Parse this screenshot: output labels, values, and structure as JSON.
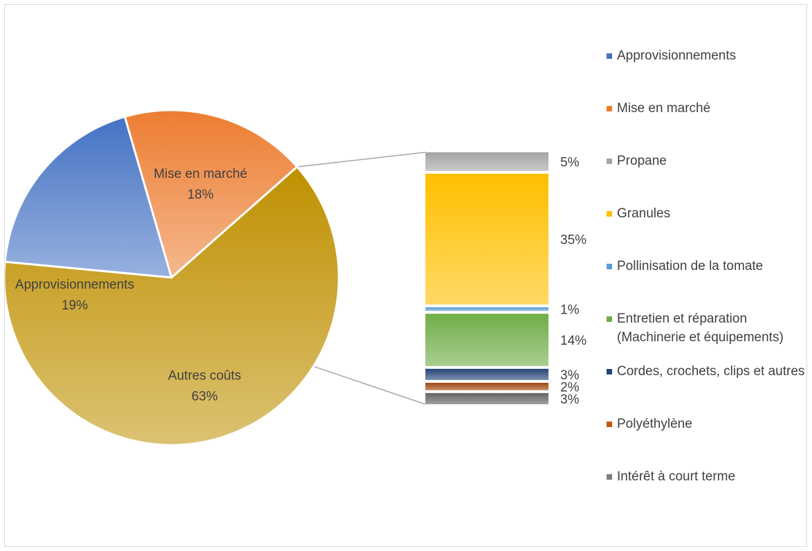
{
  "chart_data": {
    "type": "bar-of-pie",
    "pie": {
      "slices": [
        {
          "label": "Approvisionnements",
          "value": 19,
          "display": "19%",
          "color": "#4472c4"
        },
        {
          "label": "Mise en marché",
          "value": 18,
          "display": "18%",
          "color": "#ed7d31"
        },
        {
          "label": "Autres coûts",
          "value": 63,
          "display": "63%",
          "color": "#bf9000"
        }
      ]
    },
    "bar": {
      "segments": [
        {
          "label": "Propane",
          "value": 5,
          "display": "5%",
          "color": "#a5a5a5"
        },
        {
          "label": "Granules",
          "value": 35,
          "display": "35%",
          "color": "#ffc000"
        },
        {
          "label": "Pollinisation de la tomate",
          "value": 1,
          "display": "1%",
          "color": "#5b9bd5"
        },
        {
          "label": "Entretien et réparation (Machinerie et équipements)",
          "value": 14,
          "display": "14%",
          "color": "#70ad47"
        },
        {
          "label": "Cordes, crochets, clips et autres",
          "value": 3,
          "display": "3%",
          "color": "#264478"
        },
        {
          "label": "Polyéthylène",
          "value": 2,
          "display": "2%",
          "color": "#9e480e"
        },
        {
          "label": "Intérêt à court terme",
          "value": 3,
          "display": "3%",
          "color": "#636363"
        }
      ]
    },
    "legend": {
      "placement": "right",
      "entries": [
        {
          "label": "Approvisionnements",
          "color": "#4472c4"
        },
        {
          "label": "Mise en marché",
          "color": "#ed7d31"
        },
        {
          "label": "Propane",
          "color": "#a5a5a5"
        },
        {
          "label": "Granules",
          "color": "#ffc000"
        },
        {
          "label": "Pollinisation de la tomate",
          "color": "#5b9bd5"
        },
        {
          "label": "Entretien et réparation (Machinerie et équipements)",
          "color": "#70ad47"
        },
        {
          "label": "Cordes, crochets, clips et autres",
          "color": "#264478"
        },
        {
          "label": "Polyéthylène",
          "color": "#c55a11"
        },
        {
          "label": "Intérêt à court terme",
          "color": "#7f7f7f"
        }
      ]
    }
  }
}
